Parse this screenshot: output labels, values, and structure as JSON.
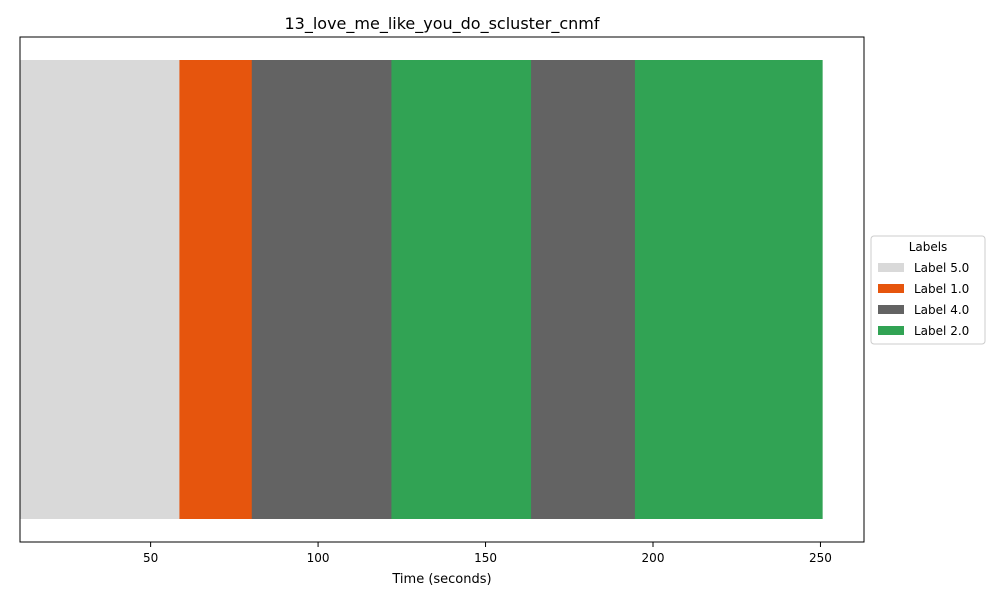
{
  "chart_data": {
    "type": "bar",
    "title": "13_love_me_like_you_do_scluster_cnmf",
    "xlabel": "Time (seconds)",
    "ylabel": "",
    "xlim": [
      11,
      263
    ],
    "xticks": [
      50,
      100,
      150,
      200,
      250
    ],
    "grid": false,
    "legend": {
      "title": "Labels",
      "placement": "center-right outside",
      "entries": [
        {
          "label": "Label 5.0",
          "color": "#d9d9d9"
        },
        {
          "label": "Label 1.0",
          "color": "#e6550d"
        },
        {
          "label": "Label 4.0",
          "color": "#636363"
        },
        {
          "label": "Label 2.0",
          "color": "#31a354"
        }
      ]
    },
    "segments": [
      {
        "start": 11.0,
        "end": 58.6,
        "label": "Label 5.0"
      },
      {
        "start": 58.6,
        "end": 80.2,
        "label": "Label 1.0"
      },
      {
        "start": 80.2,
        "end": 121.9,
        "label": "Label 4.0"
      },
      {
        "start": 121.9,
        "end": 163.6,
        "label": "Label 2.0"
      },
      {
        "start": 163.6,
        "end": 194.6,
        "label": "Label 4.0"
      },
      {
        "start": 194.6,
        "end": 250.5,
        "label": "Label 2.0"
      }
    ]
  }
}
